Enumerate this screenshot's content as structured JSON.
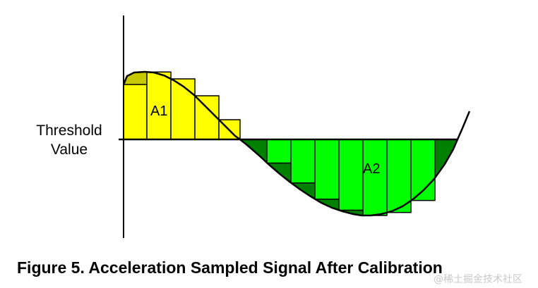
{
  "diagram": {
    "threshold_label_line1": "Threshold",
    "threshold_label_line2": "Value",
    "area1_label": "A1",
    "area2_label": "A2",
    "colors": {
      "area1_bars": "#ffff00",
      "area1_fill": "#c8c800",
      "area2_bars": "#00ff00",
      "area2_fill": "#008000",
      "line": "#000000"
    }
  },
  "caption": "Figure 5.  Acceleration Sampled Signal After Calibration",
  "watermark": "@稀土掘金技术社区"
}
